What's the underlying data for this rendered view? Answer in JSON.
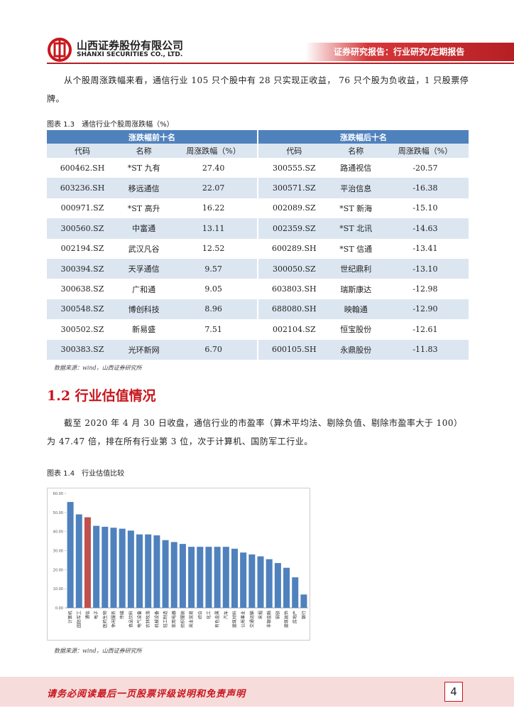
{
  "header": {
    "company_cn": "山西证券股份有限公司",
    "company_en": "SHANXI SECURITIES CO., LTD.",
    "report_type": "证券研究报告：行业研究/定期报告"
  },
  "paragraph1": "从个股周涨跌幅来看，通信行业 105 只个股中有 28 只实现正收益， 76 只个股为负收益，1 只股票停牌。",
  "table": {
    "caption": "图表 1.3　通信行业个股周涨跌幅（%）",
    "groups": [
      "涨跌幅前十名",
      "涨跌幅后十名"
    ],
    "columns": [
      "代码",
      "名称",
      "周涨跌幅（%）",
      "代码",
      "名称",
      "周涨跌幅（%）"
    ],
    "rows": [
      [
        "600462.SH",
        "*ST 九有",
        "27.40",
        "300555.SZ",
        "路通视信",
        "-20.57"
      ],
      [
        "603236.SH",
        "移远通信",
        "22.07",
        "300571.SZ",
        "平治信息",
        "-16.38"
      ],
      [
        "000971.SZ",
        "*ST 高升",
        "16.22",
        "002089.SZ",
        "*ST 新海",
        "-15.10"
      ],
      [
        "300560.SZ",
        "中富通",
        "13.11",
        "002359.SZ",
        "*ST 北讯",
        "-14.63"
      ],
      [
        "002194.SZ",
        "武汉凡谷",
        "12.52",
        "600289.SH",
        "*ST 信通",
        "-13.41"
      ],
      [
        "300394.SZ",
        "天孚通信",
        "9.57",
        "300050.SZ",
        "世纪鼎利",
        "-13.10"
      ],
      [
        "300638.SZ",
        "广和通",
        "9.05",
        "603803.SH",
        "瑞斯康达",
        "-12.98"
      ],
      [
        "300548.SZ",
        "博创科技",
        "8.96",
        "688080.SH",
        "映翰通",
        "-12.90"
      ],
      [
        "300502.SZ",
        "新易盛",
        "7.51",
        "002104.SZ",
        "恒宝股份",
        "-12.61"
      ],
      [
        "300383.SZ",
        "光环新网",
        "6.70",
        "600105.SH",
        "永鼎股份",
        "-11.83"
      ]
    ],
    "source": "数据来源：wind，山西证券研究所"
  },
  "section_heading": "1.2 行业估值情况",
  "paragraph2": "截至 2020 年 4 月 30 日收盘，通信行业的市盈率（算术平均法、剔除负值、剔除市盈率大于 100）为 47.47 倍，排在所有行业第 3 位，次于计算机、国防军工行业。",
  "chart_caption": "图表 1.4　行业估值比较",
  "chart_data": {
    "type": "bar",
    "categories": [
      "计算机",
      "国防军工",
      "通信",
      "电子",
      "医药生物",
      "休闲服务",
      "传媒",
      "食品饮料",
      "电气设备",
      "农林牧渔",
      "机械设备",
      "轻工制造",
      "家用电器",
      "纺织服装",
      "商业贸易",
      "综合",
      "化工",
      "有色金属",
      "汽车",
      "建筑材料",
      "公用事业",
      "交通运输",
      "采掘",
      "非银金融",
      "钢铁",
      "建筑装饰",
      "房地产",
      "银行"
    ],
    "values": [
      55.5,
      49,
      47.47,
      43,
      42.5,
      42,
      41.5,
      40.5,
      38.5,
      38.5,
      38,
      35.5,
      34.5,
      33.5,
      32,
      32,
      32,
      32,
      32,
      31,
      29,
      28,
      27,
      25.5,
      23.5,
      21,
      16,
      7
    ],
    "colors": [
      "#4f81bd",
      "#4f81bd",
      "#c0504d",
      "#4f81bd",
      "#4f81bd",
      "#4f81bd",
      "#4f81bd",
      "#4f81bd",
      "#4f81bd",
      "#4f81bd",
      "#4f81bd",
      "#4f81bd",
      "#4f81bd",
      "#4f81bd",
      "#4f81bd",
      "#4f81bd",
      "#4f81bd",
      "#4f81bd",
      "#4f81bd",
      "#4f81bd",
      "#4f81bd",
      "#4f81bd",
      "#4f81bd",
      "#4f81bd",
      "#4f81bd",
      "#4f81bd",
      "#4f81bd",
      "#4f81bd"
    ],
    "ylim": [
      0,
      60
    ],
    "yticks": [
      {
        "value": 0,
        "label": "0.00"
      },
      {
        "value": 10,
        "label": "10.00"
      },
      {
        "value": 20,
        "label": "20.00"
      },
      {
        "value": 30,
        "label": "30.00"
      },
      {
        "value": 40,
        "label": "40.00"
      },
      {
        "value": 50,
        "label": "50.00"
      },
      {
        "value": 60,
        "label": "60.00"
      }
    ]
  },
  "chart_source": "数据来源：wind，山西证券研究所",
  "footer": {
    "disclaimer": "请务必阅读最后一页股票评级说明和免责声明",
    "page_number": "4"
  }
}
